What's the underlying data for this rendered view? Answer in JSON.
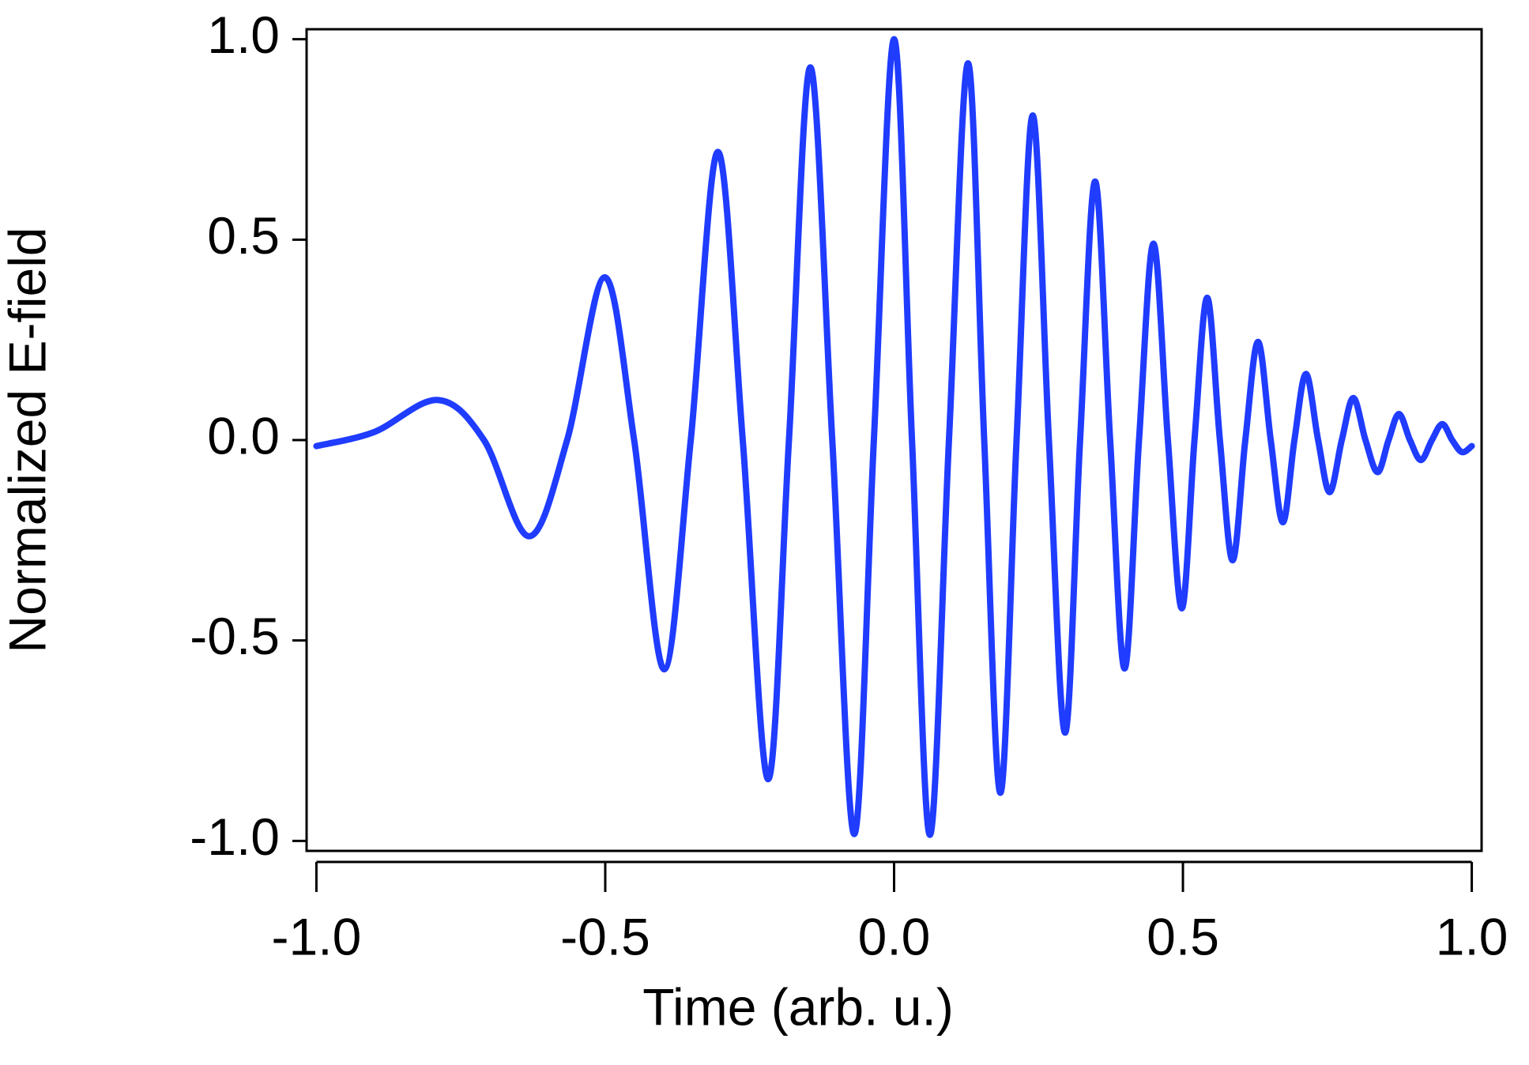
{
  "chart_data": {
    "type": "line",
    "xlabel": "Time (arb. u.)",
    "ylabel": "Normalized E-field",
    "x": [
      -1.0,
      -0.9,
      -0.79,
      -0.71,
      -0.632,
      -0.566,
      -0.501,
      -0.45,
      -0.398,
      -0.352,
      -0.305,
      -0.262,
      -0.218,
      -0.182,
      -0.145,
      -0.107,
      -0.069,
      -0.035,
      0.0,
      0.031,
      0.062,
      0.095,
      0.128,
      0.156,
      0.184,
      0.212,
      0.24,
      0.268,
      0.296,
      0.322,
      0.348,
      0.374,
      0.399,
      0.424,
      0.449,
      0.474,
      0.498,
      0.52,
      0.542,
      0.564,
      0.586,
      0.608,
      0.63,
      0.652,
      0.673,
      0.693,
      0.713,
      0.734,
      0.754,
      0.775,
      0.795,
      0.816,
      0.837,
      0.856,
      0.874,
      0.893,
      0.912,
      0.931,
      0.949,
      0.966,
      0.983,
      1.0
    ],
    "series": [
      {
        "color": "#1f3cff",
        "values": [
          -0.015,
          0.02,
          0.1,
          0,
          -0.24,
          0,
          0.406,
          0,
          -0.572,
          0,
          0.719,
          0,
          -0.846,
          0,
          0.93,
          0,
          -0.983,
          0,
          1.0,
          0,
          -0.985,
          0,
          0.94,
          0,
          -0.88,
          0,
          0.81,
          0,
          -0.73,
          0,
          0.645,
          0,
          -0.57,
          0,
          0.49,
          0,
          -0.42,
          0,
          0.355,
          0,
          -0.3,
          0,
          0.245,
          0,
          -0.205,
          0,
          0.165,
          0,
          -0.13,
          0,
          0.105,
          0,
          -0.08,
          0,
          0.065,
          0,
          -0.05,
          0,
          0.04,
          0,
          -0.03,
          -0.015
        ]
      }
    ],
    "xlim": [
      -1.017,
      1.017
    ],
    "ylim": [
      -1.025,
      1.025
    ],
    "xticks": [
      {
        "value": -1,
        "label": "-1.0"
      },
      -0.5,
      {
        "value": 0,
        "label": "0.0"
      },
      0.5,
      {
        "value": 1,
        "label": "1.0"
      }
    ],
    "yticks": [
      {
        "value": -1,
        "label": "-1.0"
      },
      -0.5,
      {
        "value": 0,
        "label": "0.0"
      },
      0.5,
      {
        "value": 1,
        "label": "1.0"
      }
    ],
    "grid": false
  }
}
